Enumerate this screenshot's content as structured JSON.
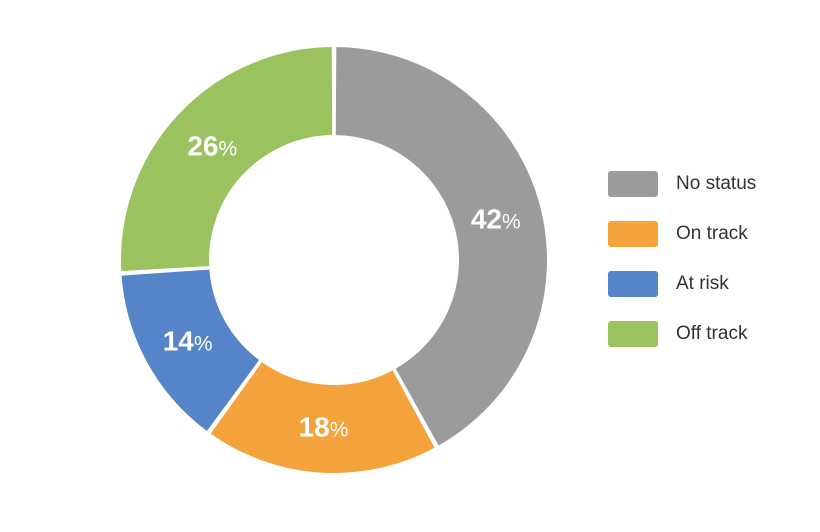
{
  "chart_data": {
    "type": "pie",
    "variant": "donut",
    "title": "",
    "categories": [
      "No status",
      "On track",
      "At risk",
      "Off track"
    ],
    "values": [
      42,
      18,
      14,
      26
    ],
    "value_unit": "%",
    "colors": [
      "#9b9b9b",
      "#f4a23c",
      "#5584c8",
      "#9ac25e"
    ],
    "value_labels": [
      "42",
      "18",
      "14",
      "26"
    ],
    "legend": {
      "position": "right",
      "entries": [
        "No status",
        "On track",
        "At risk",
        "Off track"
      ]
    }
  }
}
